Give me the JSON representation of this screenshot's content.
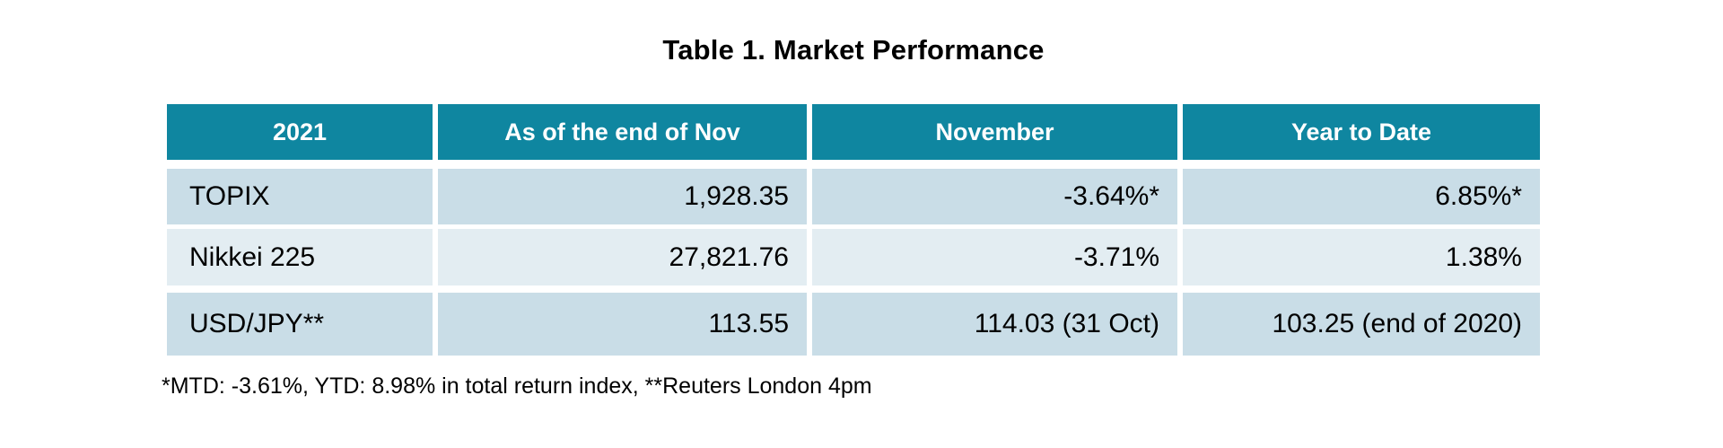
{
  "title": "Table 1. Market Performance",
  "table": {
    "headers": [
      "2021",
      "As of the end of Nov",
      "November",
      "Year to Date"
    ],
    "rows": [
      {
        "cells": [
          "TOPIX",
          "1,928.35",
          "-3.64%*",
          "6.85%*"
        ]
      },
      {
        "cells": [
          "Nikkei 225",
          "27,821.76",
          "-3.71%",
          "1.38%"
        ]
      },
      {
        "cells": [
          "USD/JPY**",
          "113.55",
          "114.03 (31 Oct)",
          "103.25 (end of 2020)"
        ]
      }
    ]
  },
  "footnote": "*MTD: -3.61%, YTD: 8.98% in total return index, **Reuters London 4pm",
  "colors": {
    "header_bg": "#0F86A0",
    "header_text": "#FFFFFF",
    "row_dark": "#C9DDE7",
    "row_light": "#E3EDF2",
    "text": "#000000",
    "page_bg": "#FFFFFF"
  },
  "chart_data": {
    "type": "table",
    "title": "Table 1. Market Performance",
    "columns": [
      "2021",
      "As of the end of Nov",
      "November",
      "Year to Date"
    ],
    "rows": [
      [
        "TOPIX",
        "1,928.35",
        "-3.64%*",
        "6.85%*"
      ],
      [
        "Nikkei 225",
        "27,821.76",
        "-3.71%",
        "1.38%"
      ],
      [
        "USD/JPY**",
        "113.55",
        "114.03 (31 Oct)",
        "103.25 (end of 2020)"
      ]
    ],
    "footnote": "*MTD: -3.61%, YTD: 8.98% in total return index, **Reuters London 4pm"
  }
}
